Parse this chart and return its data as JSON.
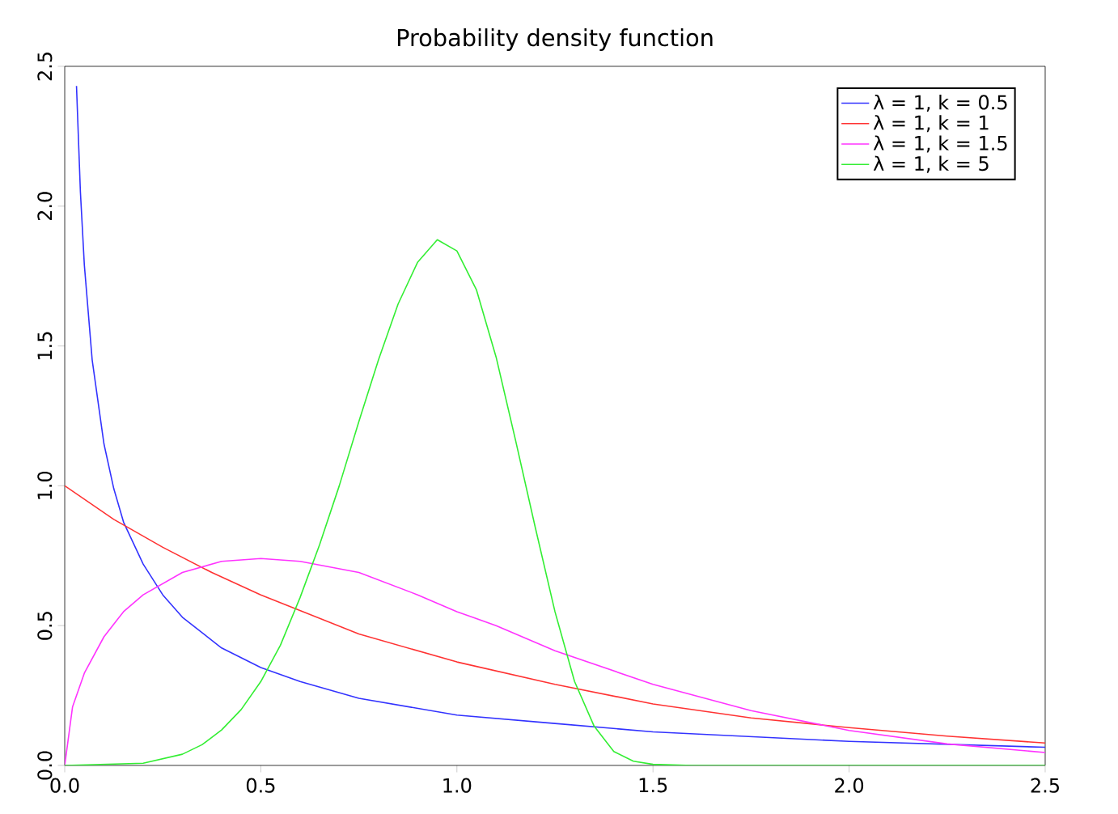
{
  "chart_data": {
    "type": "line",
    "title": "Probability density function",
    "xlim": [
      0,
      2.5
    ],
    "ylim": [
      0,
      2.5
    ],
    "xticks": [
      {
        "value": 0,
        "label": "0.0"
      },
      0.5,
      {
        "value": 1,
        "label": "1.0"
      },
      1.5,
      {
        "value": 2,
        "label": "2.0"
      },
      2.5
    ],
    "yticks": [
      {
        "value": 0,
        "label": "0.0"
      },
      0.5,
      {
        "value": 1,
        "label": "1.0"
      },
      1.5,
      {
        "value": 2,
        "label": "2.0"
      },
      2.5
    ],
    "grid": false,
    "legend": "top right",
    "marker": "none",
    "line_style": "solid",
    "series": [
      {
        "name": "λ = 1, k = 0.5",
        "color": "#3333ff",
        "x": [
          0.03,
          0.04,
          0.05,
          0.07,
          0.1,
          0.125,
          0.15,
          0.2,
          0.25,
          0.3,
          0.4,
          0.5,
          0.6,
          0.75,
          1.0,
          1.25,
          1.5,
          2.0,
          2.5
        ],
        "values": [
          2.43,
          2.05,
          1.79,
          1.45,
          1.15,
          0.99,
          0.87,
          0.72,
          0.61,
          0.53,
          0.42,
          0.35,
          0.3,
          0.24,
          0.18,
          0.15,
          0.12,
          0.086,
          0.065
        ]
      },
      {
        "name": "λ = 1, k = 1",
        "color": "#ff3333",
        "x": [
          0,
          0.125,
          0.25,
          0.375,
          0.5,
          0.75,
          1.0,
          1.25,
          1.5,
          1.75,
          2.0,
          2.25,
          2.5
        ],
        "values": [
          1.0,
          0.88,
          0.78,
          0.69,
          0.61,
          0.47,
          0.37,
          0.29,
          0.22,
          0.17,
          0.135,
          0.105,
          0.08
        ]
      },
      {
        "name": "λ = 1, k = 1.5",
        "color": "#ff33ff",
        "x": [
          0,
          0.02,
          0.05,
          0.1,
          0.15,
          0.2,
          0.3,
          0.4,
          0.5,
          0.6,
          0.75,
          0.9,
          1.0,
          1.1,
          1.25,
          1.5,
          1.75,
          2.0,
          2.25,
          2.5
        ],
        "values": [
          0,
          0.21,
          0.33,
          0.46,
          0.55,
          0.61,
          0.69,
          0.73,
          0.74,
          0.73,
          0.69,
          0.61,
          0.55,
          0.5,
          0.41,
          0.29,
          0.196,
          0.125,
          0.077,
          0.046
        ]
      },
      {
        "name": "λ = 1, k = 5",
        "color": "#33ee33",
        "x": [
          0,
          0.2,
          0.3,
          0.35,
          0.4,
          0.45,
          0.5,
          0.55,
          0.6,
          0.65,
          0.7,
          0.75,
          0.8,
          0.85,
          0.9,
          0.95,
          1.0,
          1.05,
          1.1,
          1.15,
          1.2,
          1.25,
          1.3,
          1.35,
          1.4,
          1.45,
          1.5,
          1.6,
          2.5
        ],
        "values": [
          0,
          0.008,
          0.04,
          0.074,
          0.127,
          0.2,
          0.3,
          0.43,
          0.6,
          0.79,
          1.0,
          1.23,
          1.45,
          1.65,
          1.8,
          1.88,
          1.84,
          1.7,
          1.46,
          1.16,
          0.85,
          0.55,
          0.3,
          0.14,
          0.05,
          0.015,
          0.004,
          0,
          0
        ]
      }
    ]
  }
}
